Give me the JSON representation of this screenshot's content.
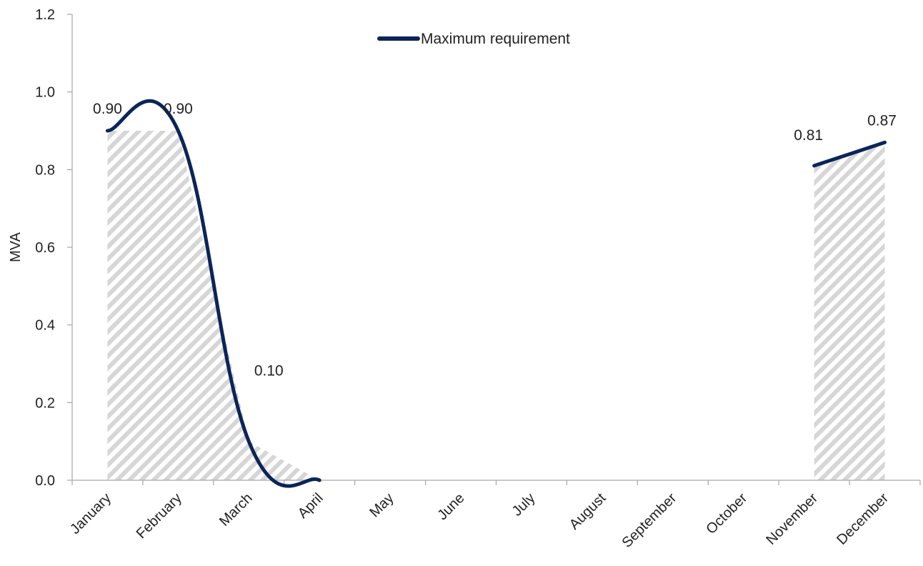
{
  "chart_data": {
    "type": "line",
    "categories": [
      "January",
      "February",
      "March",
      "April",
      "May",
      "June",
      "July",
      "August",
      "September",
      "October",
      "November",
      "December"
    ],
    "series": [
      {
        "name": "Maximum requirement",
        "values": [
          0.9,
          0.9,
          0.1,
          0.0,
          null,
          null,
          null,
          null,
          0.0,
          null,
          0.81,
          0.87
        ],
        "color": "#0b2559",
        "fill_pattern": "diagonal-hatch-grey"
      }
    ],
    "data_labels": [
      {
        "category": "January",
        "text": "0.90"
      },
      {
        "category": "February",
        "text": "0.90"
      },
      {
        "category": "March",
        "text": "0.10"
      },
      {
        "category": "November",
        "text": "0.81"
      },
      {
        "category": "December",
        "text": "0.87"
      }
    ],
    "ylabel": "MVA",
    "xlabel": "",
    "title": "",
    "ylim": [
      0,
      1.2
    ],
    "yticks": [
      "0.0",
      "0.2",
      "0.4",
      "0.6",
      "0.8",
      "1.0",
      "1.2"
    ],
    "grid": false,
    "legend_position": "top-center"
  }
}
